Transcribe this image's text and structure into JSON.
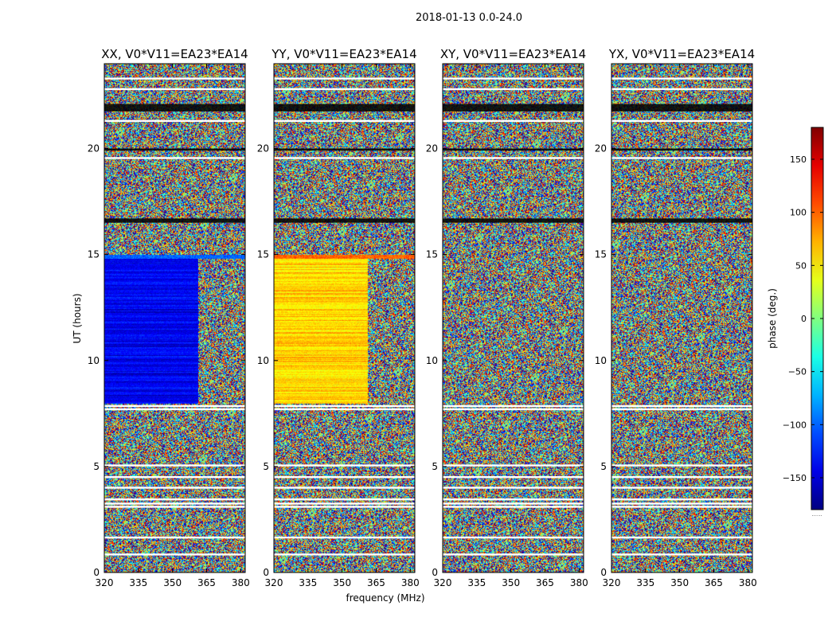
{
  "chart_data": {
    "type": "heatmap",
    "suptitle": "2018-01-13 0.0-24.0",
    "xlabel": "frequency (MHz)",
    "ylabel": "UT (hours)",
    "xlim": [
      320,
      382
    ],
    "ylim": [
      0,
      24
    ],
    "xticks": [
      320,
      335,
      350,
      365,
      380
    ],
    "yticks": [
      0,
      5,
      10,
      15,
      20
    ],
    "panels": [
      {
        "title": "XX, V0*V11=EA23*EA14",
        "pol": "XX",
        "base_phase": -140
      },
      {
        "title": "YY, V0*V11=EA23*EA14",
        "pol": "YY",
        "base_phase": 60
      },
      {
        "title": "XY, V0*V11=EA23*EA14",
        "pol": "XY",
        "base_phase": null
      },
      {
        "title": "YX, V0*V11=EA23*EA14",
        "pol": "YX",
        "base_phase": null
      }
    ],
    "coherent_band_ut": [
      8.0,
      14.8
    ],
    "rfi_edge_freq_mhz": 361,
    "flagged_ut": [
      0.85,
      1.65,
      3.1,
      3.25,
      3.45,
      4.0,
      4.5,
      5.05,
      7.7,
      7.85,
      19.55,
      21.3,
      22.8,
      23.3
    ],
    "colorbar": {
      "label": "phase (deg.)",
      "range": [
        -180,
        180
      ],
      "ticks": [
        -150,
        -100,
        -50,
        0,
        50,
        100,
        150
      ],
      "tick_labels": [
        "−150",
        "−100",
        "−50",
        "0",
        "50",
        "100",
        "150"
      ],
      "colormap": "jet",
      "footer": "......"
    }
  }
}
